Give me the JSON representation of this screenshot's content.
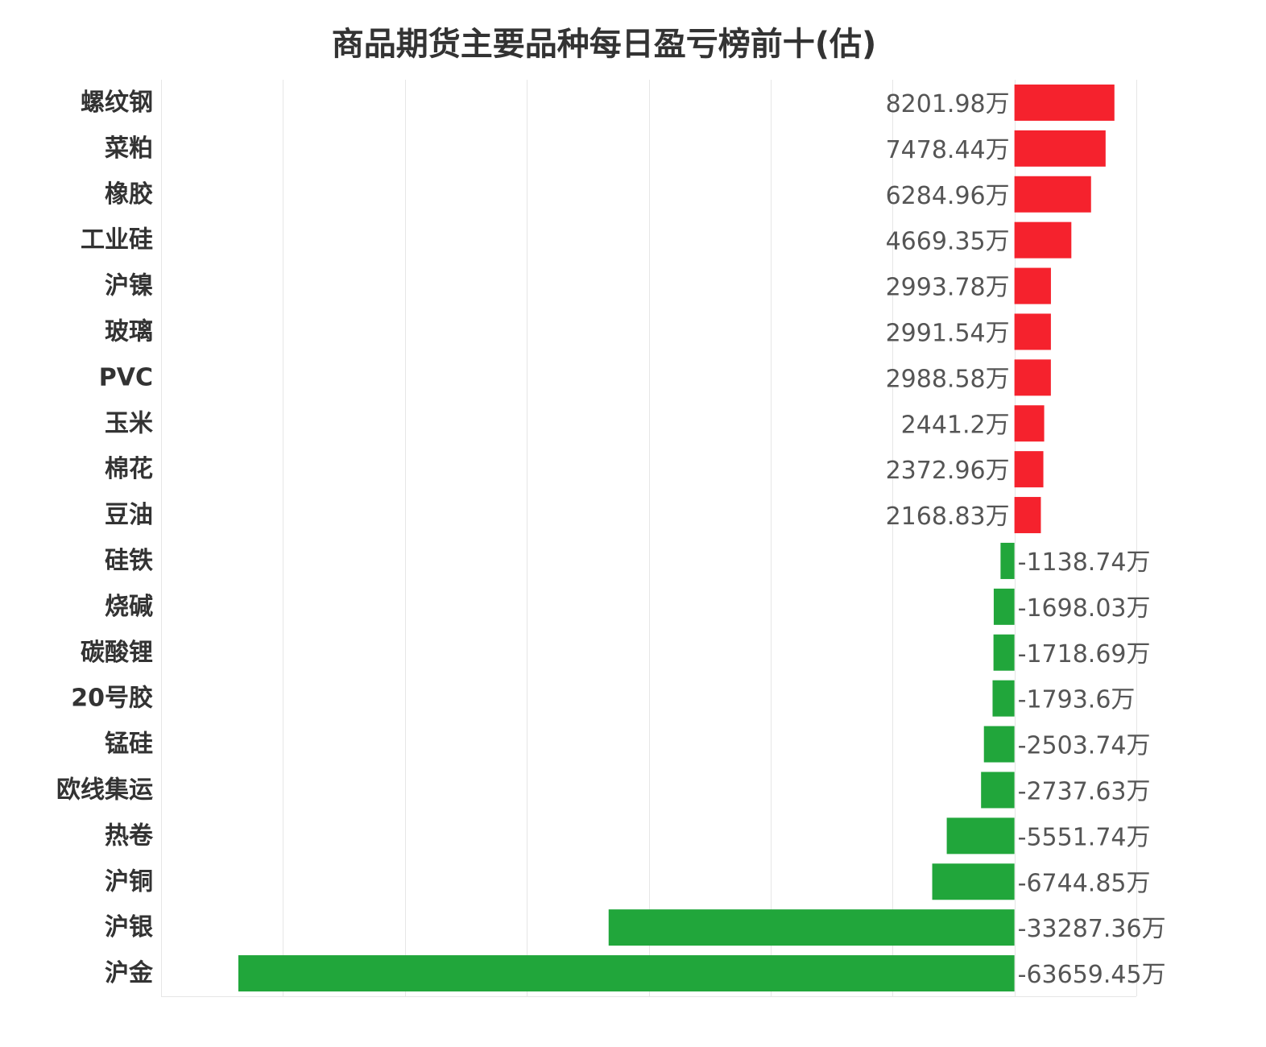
{
  "chart_data": {
    "type": "bar",
    "orientation": "horizontal",
    "title": "商品期货主要品种每日盈亏榜前十(估)",
    "value_suffix": "万",
    "grid": true,
    "categories": [
      "螺纹钢",
      "菜粕",
      "橡胶",
      "工业硅",
      "沪镍",
      "玻璃",
      "PVC",
      "玉米",
      "棉花",
      "豆油",
      "硅铁",
      "烧碱",
      "碳酸锂",
      "20号胶",
      "锰硅",
      "欧线集运",
      "热卷",
      "沪铜",
      "沪银",
      "沪金"
    ],
    "values": [
      8201.98,
      7478.44,
      6284.96,
      4669.35,
      2993.78,
      2991.54,
      2988.58,
      2441.2,
      2372.96,
      2168.83,
      -1138.74,
      -1698.03,
      -1718.69,
      -1793.6,
      -2503.74,
      -2737.63,
      -5551.74,
      -6744.85,
      -33287.36,
      -63659.45
    ],
    "value_labels": [
      "8201.98万",
      "7478.44万",
      "6284.96万",
      "4669.35万",
      "2993.78万",
      "2991.54万",
      "2988.58万",
      "2441.2万",
      "2372.96万",
      "2168.83万",
      "-1138.74万",
      "-1698.03万",
      "-1718.69万",
      "-1793.6万",
      "-2503.74万",
      "-2737.63万",
      "-5551.74万",
      "-6744.85万",
      "-33287.36万",
      "-63659.45万"
    ],
    "xlim": [
      -70000,
      10000
    ],
    "colors": {
      "positive": "#f5222d",
      "negative": "#21a63b"
    }
  }
}
